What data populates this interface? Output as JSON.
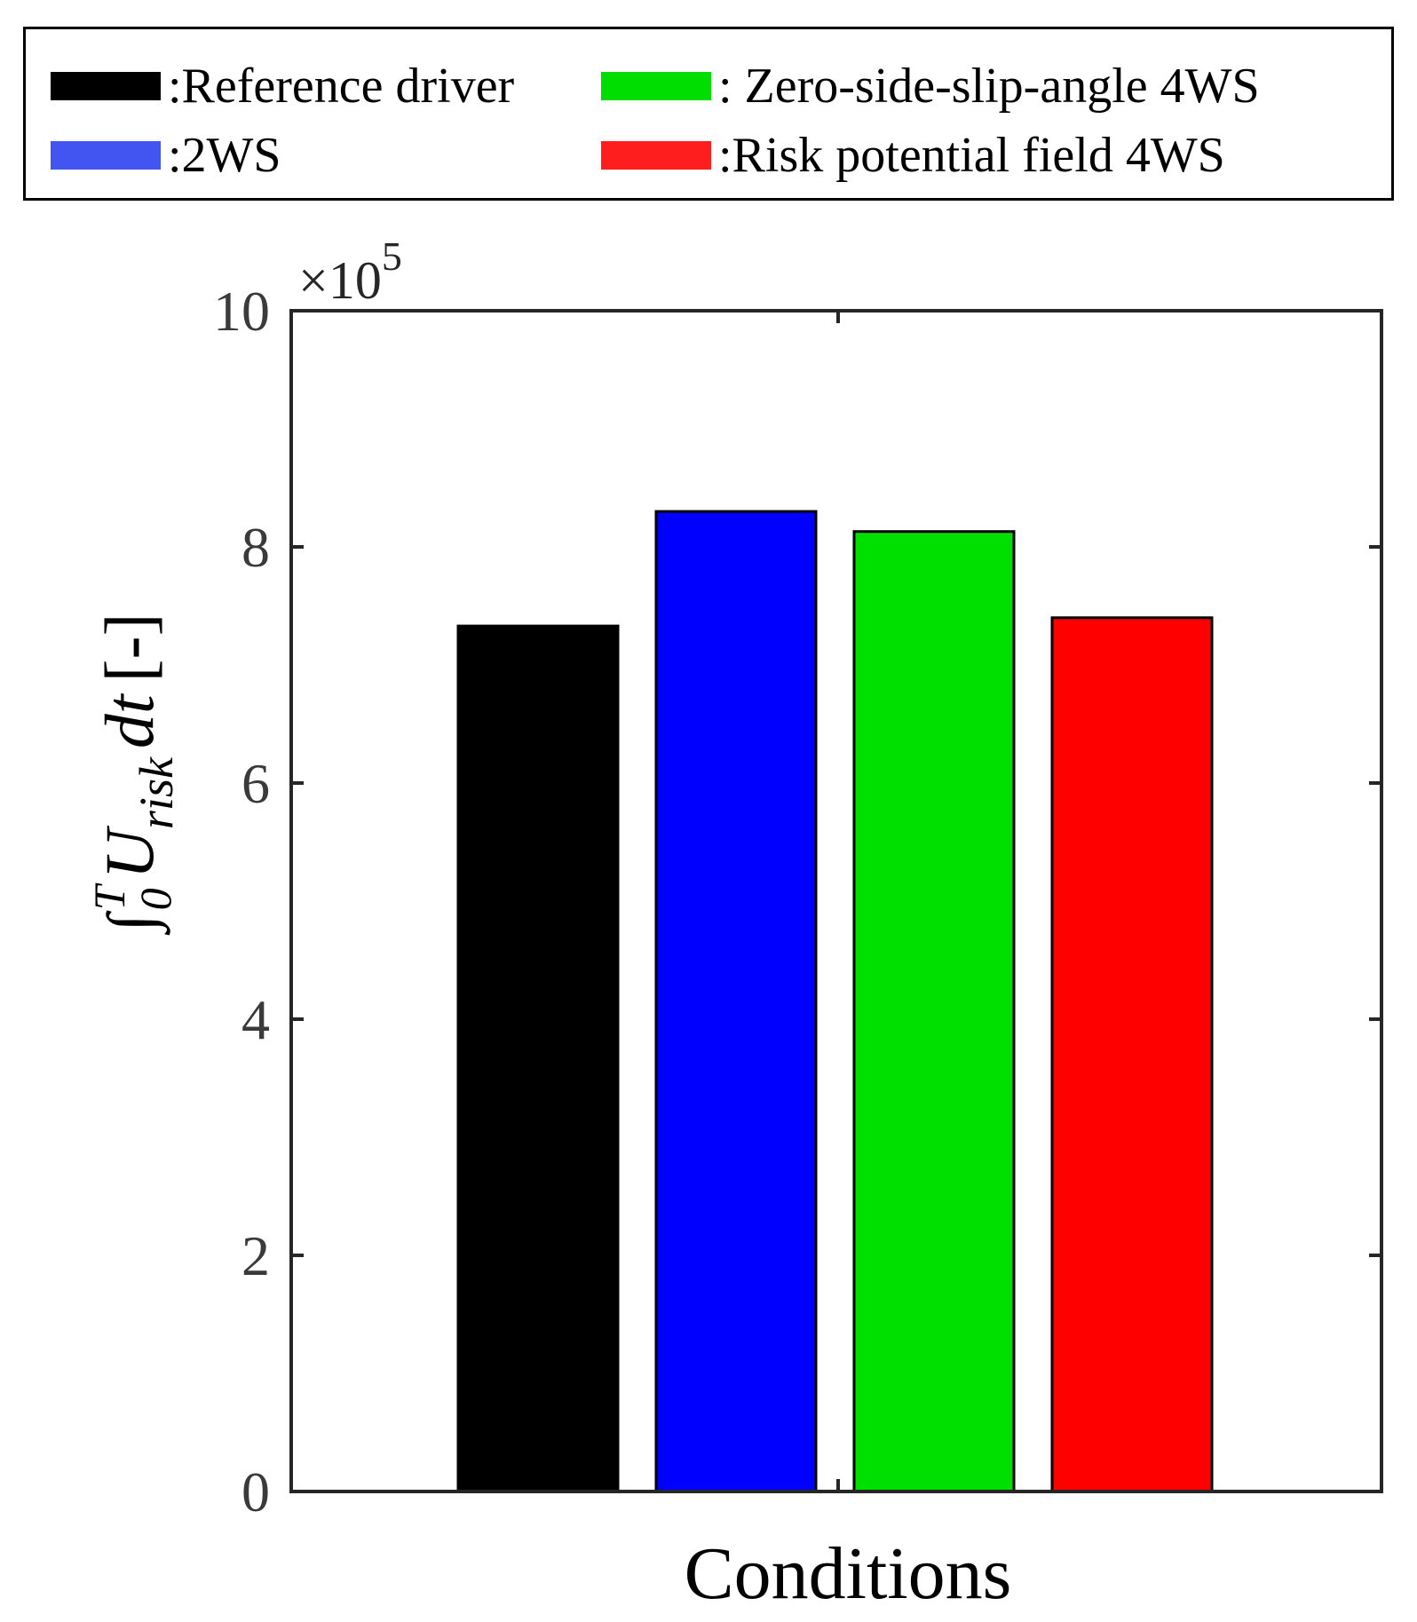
{
  "legend": {
    "items": [
      {
        "label": ":Reference driver",
        "color": "#000000"
      },
      {
        "label": ":2WS",
        "color": "#4255F0"
      },
      {
        "label": ": Zero-side-slip-angle 4WS",
        "color": "#00DD00"
      },
      {
        "label": ":Risk potential field 4WS",
        "color": "#FF1E1E"
      }
    ]
  },
  "chart_data": {
    "type": "bar",
    "title": "",
    "xlabel": "Conditions",
    "ylabel_parts": {
      "integral": "∫",
      "upper_limit": "T",
      "lower_limit": "0",
      "function": "U",
      "subscript": "risk",
      "differential": "dt",
      "unit": "[-]"
    },
    "y_multiplier": {
      "prefix": "×10",
      "exponent": "5"
    },
    "ylim": [
      0,
      10
    ],
    "yticks": [
      0,
      2,
      4,
      6,
      8,
      10
    ],
    "ytick_labels": [
      "0",
      "2",
      "4",
      "6",
      "8",
      "10"
    ],
    "grid": false,
    "series": [
      {
        "name": "Reference driver",
        "value": 7.33,
        "color": "#000000"
      },
      {
        "name": "2WS",
        "value": 8.3,
        "color": "#0000FF"
      },
      {
        "name": "Zero-side-slip-angle 4WS",
        "value": 8.13,
        "color": "#00E000"
      },
      {
        "name": "Risk potential field 4WS",
        "value": 7.4,
        "color": "#FF0000"
      }
    ]
  }
}
